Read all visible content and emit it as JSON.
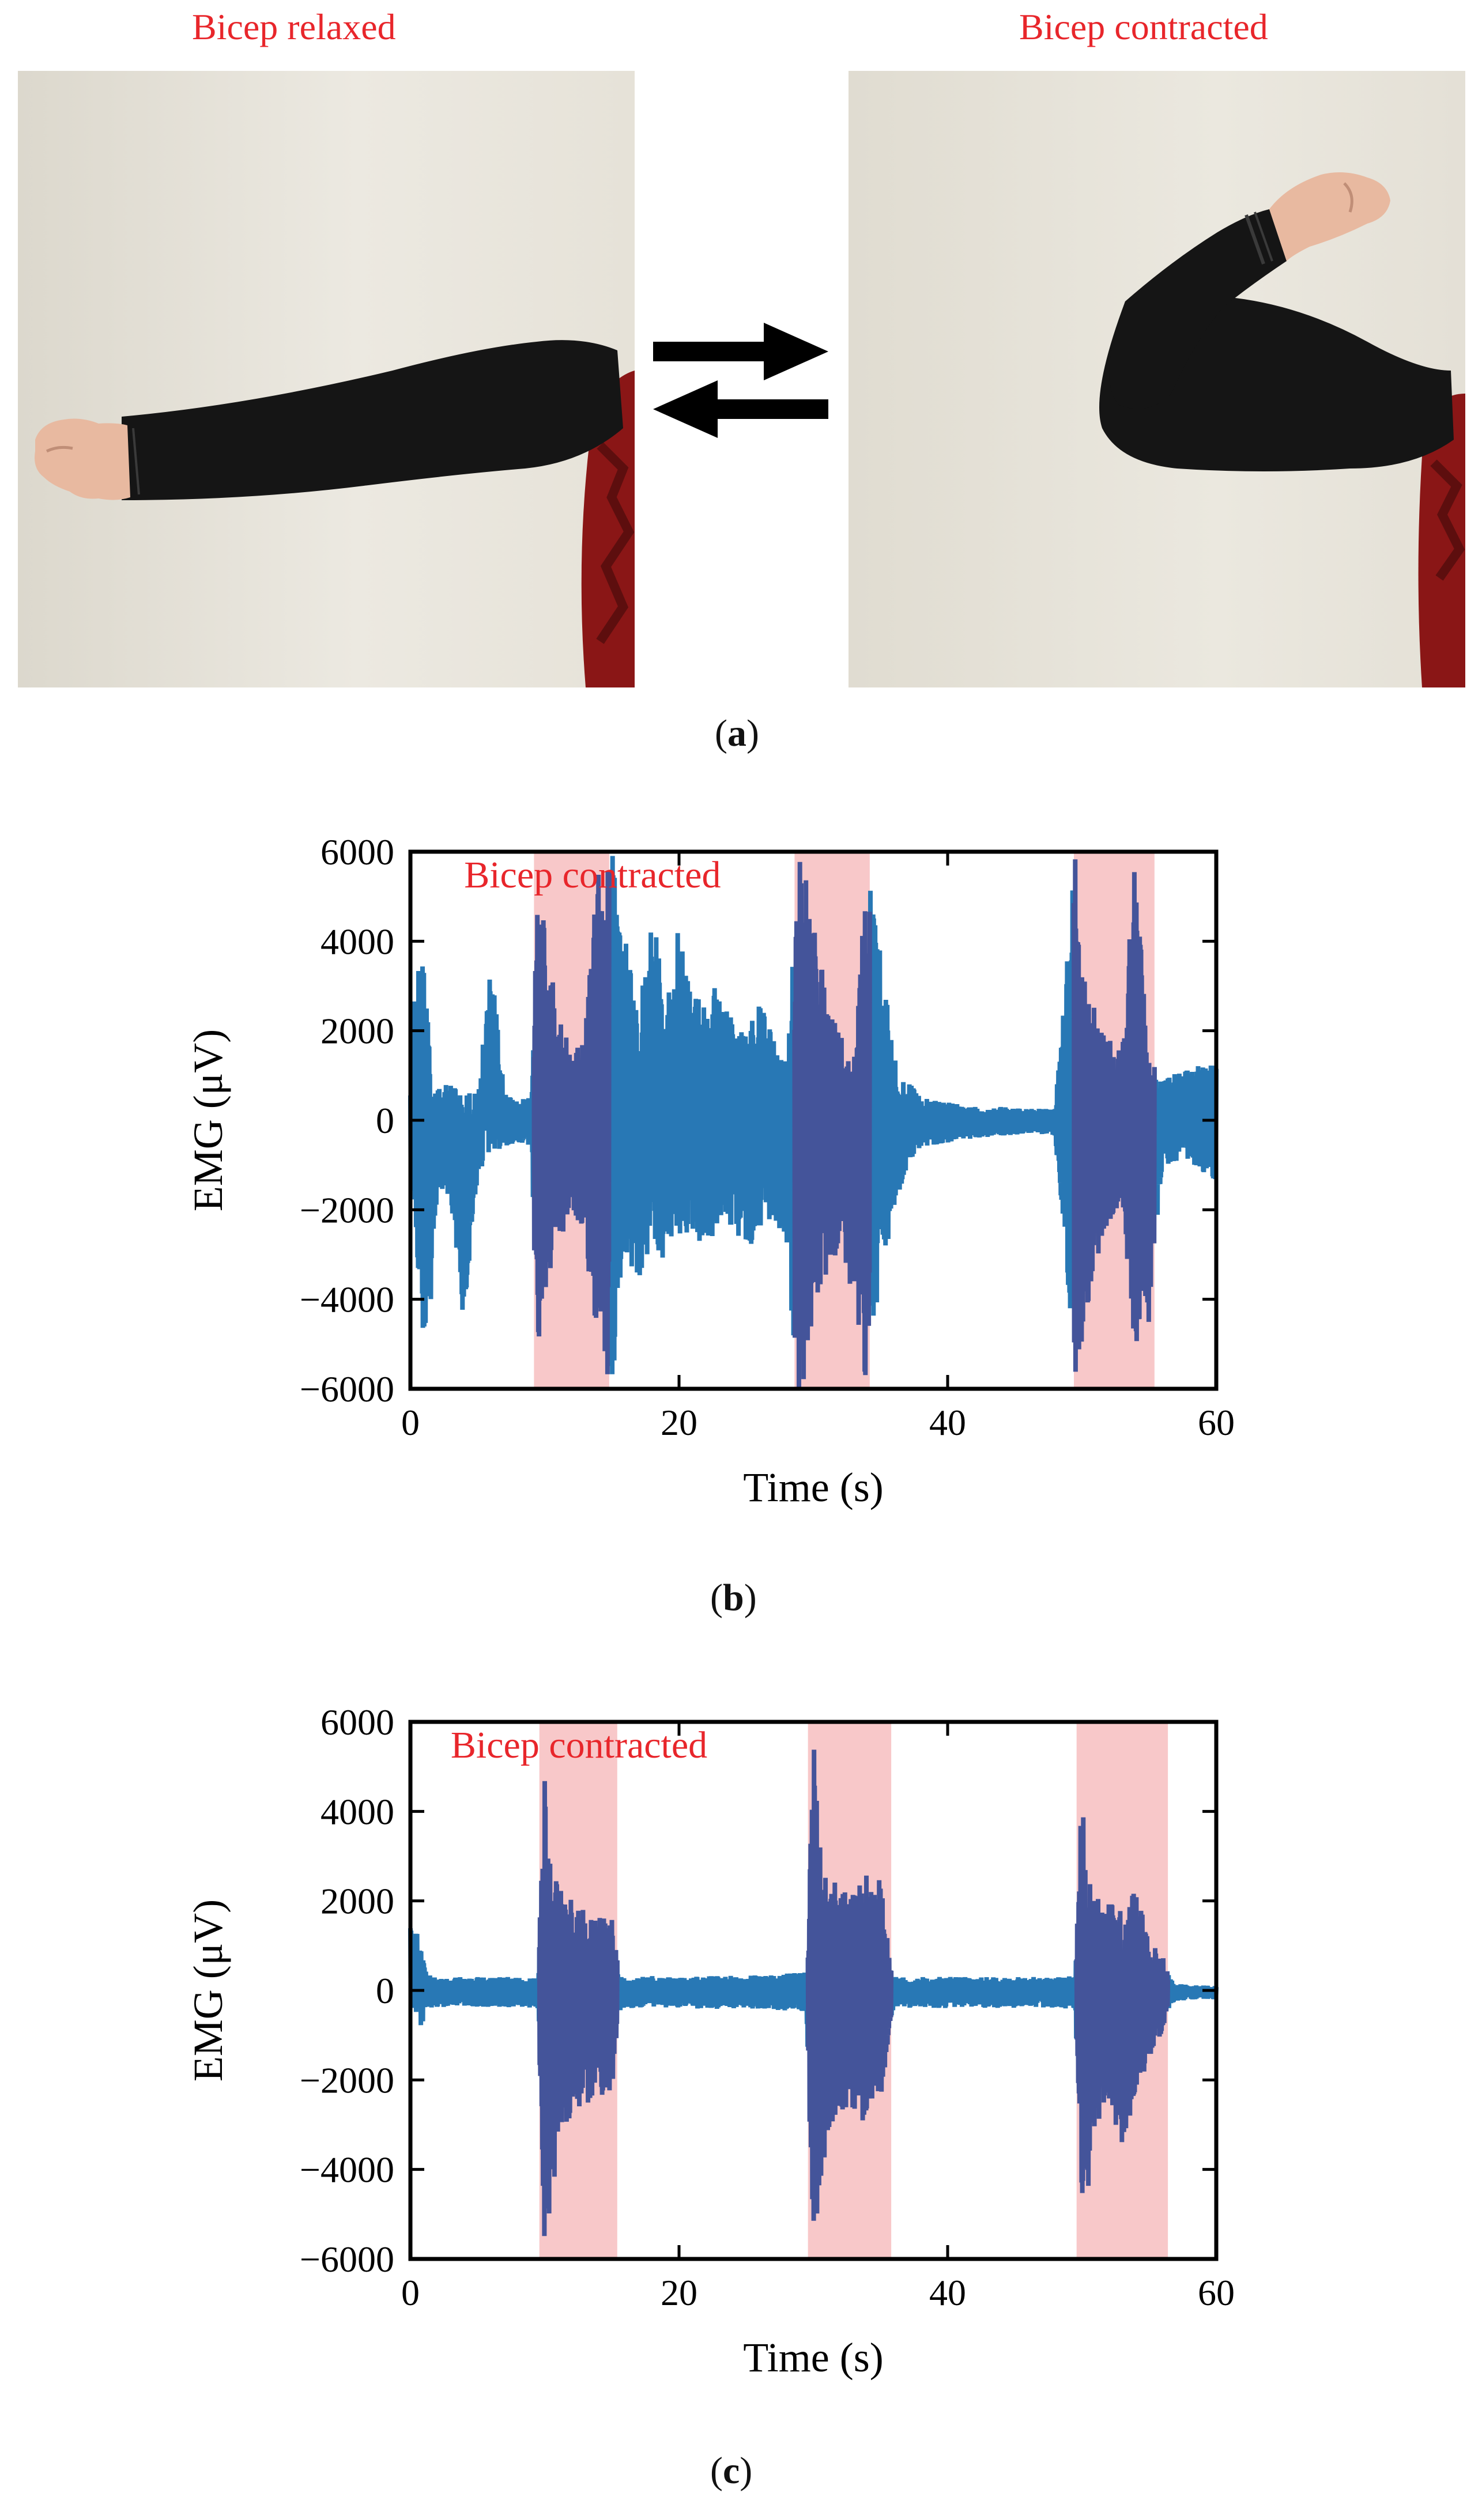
{
  "panel_a": {
    "left_label": "Bicep relaxed",
    "right_label": "Bicep contracted",
    "caption_letter": "a",
    "colors": {
      "label": "#e8262b",
      "wall": "#e6e2d8",
      "sleeve": "#151515",
      "shirt": "#8a1616",
      "skin": "#e8b9a0"
    },
    "icons": [
      "arm-relaxed-photo",
      "arm-flexed-photo",
      "right-arrow-icon",
      "left-arrow-icon"
    ]
  },
  "panel_b": {
    "caption_letter": "b"
  },
  "panel_c": {
    "caption_letter": "c"
  },
  "chart_data": [
    {
      "type": "line",
      "id": "b",
      "xlabel": "Time (s)",
      "ylabel": "EMG (μV)",
      "xlim": [
        0,
        60
      ],
      "ylim": [
        -6000,
        6000
      ],
      "xticks": [
        "0",
        "20",
        "40",
        "60"
      ],
      "yticks": [
        "6000",
        "4000",
        "2000",
        "0",
        "−2000",
        "−4000",
        "−6000"
      ],
      "annotation": "Bicep contracted",
      "highlight_intervals": [
        [
          9.2,
          14.8
        ],
        [
          28.6,
          34.2
        ],
        [
          49.4,
          55.4
        ]
      ],
      "colors": {
        "signal": "#2878b5",
        "signal_in_band": "#44549a",
        "band": "#f8c8c9",
        "annotation": "#e8262b"
      },
      "envelope": {
        "t": [
          0,
          0.5,
          1,
          1.5,
          2,
          3,
          4,
          5,
          6,
          7,
          8,
          9,
          9.5,
          10,
          11,
          12,
          13,
          14,
          15,
          16,
          17,
          18,
          19,
          20,
          21,
          22,
          23,
          24,
          25,
          26,
          27,
          28,
          28.8,
          29.5,
          30,
          31,
          32,
          33,
          34,
          35,
          36,
          37,
          38,
          40,
          42,
          44,
          46,
          48,
          49.5,
          50,
          51,
          52,
          53,
          54,
          55,
          56,
          58,
          60
        ],
        "max": [
          1200,
          3800,
          3400,
          1500,
          700,
          900,
          700,
          600,
          3600,
          600,
          400,
          600,
          6000,
          4500,
          2400,
          1500,
          2100,
          6000,
          6000,
          4200,
          2800,
          4800,
          2600,
          4400,
          2800,
          2600,
          3200,
          2300,
          2200,
          2600,
          2000,
          1400,
          6000,
          5500,
          4800,
          2600,
          2000,
          1200,
          6000,
          3800,
          1400,
          900,
          500,
          400,
          300,
          300,
          250,
          280,
          6000,
          3800,
          2400,
          1800,
          1700,
          6000,
          1400,
          900,
          1200,
          1300
        ],
        "min": [
          -1200,
          -3200,
          -5200,
          -4200,
          -1500,
          -1800,
          -4700,
          -1200,
          -800,
          -600,
          -500,
          -600,
          -6000,
          -4000,
          -2800,
          -2300,
          -2400,
          -6000,
          -6000,
          -3000,
          -3800,
          -3000,
          -3200,
          -2600,
          -2600,
          -2800,
          -2600,
          -2400,
          -3000,
          -2400,
          -2200,
          -2800,
          -6000,
          -6000,
          -4500,
          -3600,
          -2800,
          -4000,
          -6000,
          -3600,
          -2000,
          -1000,
          -600,
          -500,
          -400,
          -350,
          -300,
          -350,
          -6000,
          -5000,
          -3200,
          -2400,
          -2000,
          -5300,
          -4500,
          -1000,
          -900,
          -1400
        ]
      }
    },
    {
      "type": "line",
      "id": "c",
      "xlabel": "Time (s)",
      "ylabel": "EMG (μV)",
      "xlim": [
        0,
        60
      ],
      "ylim": [
        -6000,
        6000
      ],
      "xticks": [
        "0",
        "20",
        "40",
        "60"
      ],
      "yticks": [
        "6000",
        "4000",
        "2000",
        "0",
        "−2000",
        "−4000",
        "−6000"
      ],
      "annotation": "Bicep contracted",
      "highlight_intervals": [
        [
          9.6,
          15.4
        ],
        [
          29.6,
          35.8
        ],
        [
          49.6,
          56.4
        ]
      ],
      "colors": {
        "signal": "#2878b5",
        "signal_in_band": "#44549a",
        "band": "#f8c8c9",
        "annotation": "#e8262b"
      },
      "envelope": {
        "t": [
          0,
          0.4,
          0.8,
          1.2,
          1.6,
          2,
          4,
          6,
          8,
          9.5,
          10,
          10.5,
          11,
          12,
          13,
          14,
          15,
          15.5,
          16,
          18,
          20,
          22,
          24,
          26,
          28,
          29.5,
          30,
          30.5,
          31,
          32,
          33,
          34,
          35,
          35.8,
          36,
          38,
          40,
          42,
          44,
          46,
          48,
          49.5,
          50,
          50.5,
          51,
          52,
          53,
          54,
          55,
          56,
          56.5,
          57,
          58,
          60
        ],
        "max": [
          1500,
          1400,
          900,
          400,
          300,
          280,
          300,
          300,
          300,
          300,
          5000,
          2800,
          2600,
          2000,
          1800,
          1600,
          1800,
          400,
          300,
          320,
          300,
          320,
          330,
          340,
          380,
          400,
          6000,
          3200,
          2600,
          2300,
          2200,
          2600,
          2500,
          600,
          300,
          300,
          300,
          300,
          300,
          300,
          300,
          320,
          5000,
          2600,
          2200,
          2000,
          1800,
          2300,
          1200,
          800,
          300,
          150,
          120,
          100
        ],
        "min": [
          -300,
          -600,
          -900,
          -500,
          -400,
          -380,
          -350,
          -380,
          -380,
          -400,
          -6000,
          -5000,
          -3200,
          -2800,
          -2600,
          -2400,
          -2500,
          -500,
          -400,
          -380,
          -400,
          -420,
          -400,
          -420,
          -450,
          -500,
          -6000,
          -4800,
          -3200,
          -2800,
          -2600,
          -3200,
          -2600,
          -700,
          -400,
          -380,
          -400,
          -380,
          -400,
          -380,
          -400,
          -420,
          -5200,
          -4500,
          -3000,
          -2600,
          -3500,
          -2400,
          -1500,
          -900,
          -400,
          -250,
          -200,
          -200
        ]
      }
    }
  ]
}
